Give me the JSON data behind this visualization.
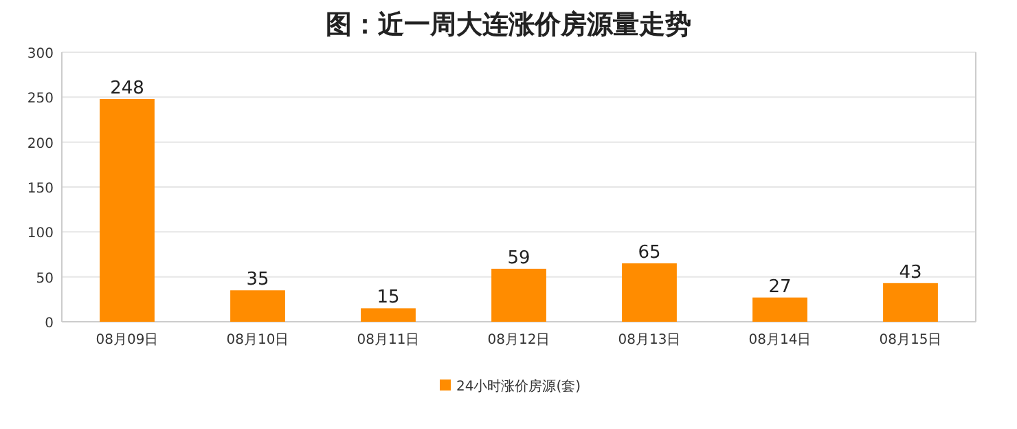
{
  "chart_data": {
    "type": "bar",
    "title": "图：近一周大连涨价房源量走势",
    "categories": [
      "08月09日",
      "08月10日",
      "08月11日",
      "08月12日",
      "08月13日",
      "08月14日",
      "08月15日"
    ],
    "series": [
      {
        "name": "24小时涨价房源(套)",
        "color": "#ff8c00",
        "values": [
          248,
          35,
          15,
          59,
          65,
          27,
          43
        ]
      }
    ],
    "ylim": [
      0,
      300
    ],
    "yticks": [
      0,
      50,
      100,
      150,
      200,
      250,
      300
    ],
    "grid": "y",
    "legend": "bottom",
    "data_labels": true
  }
}
